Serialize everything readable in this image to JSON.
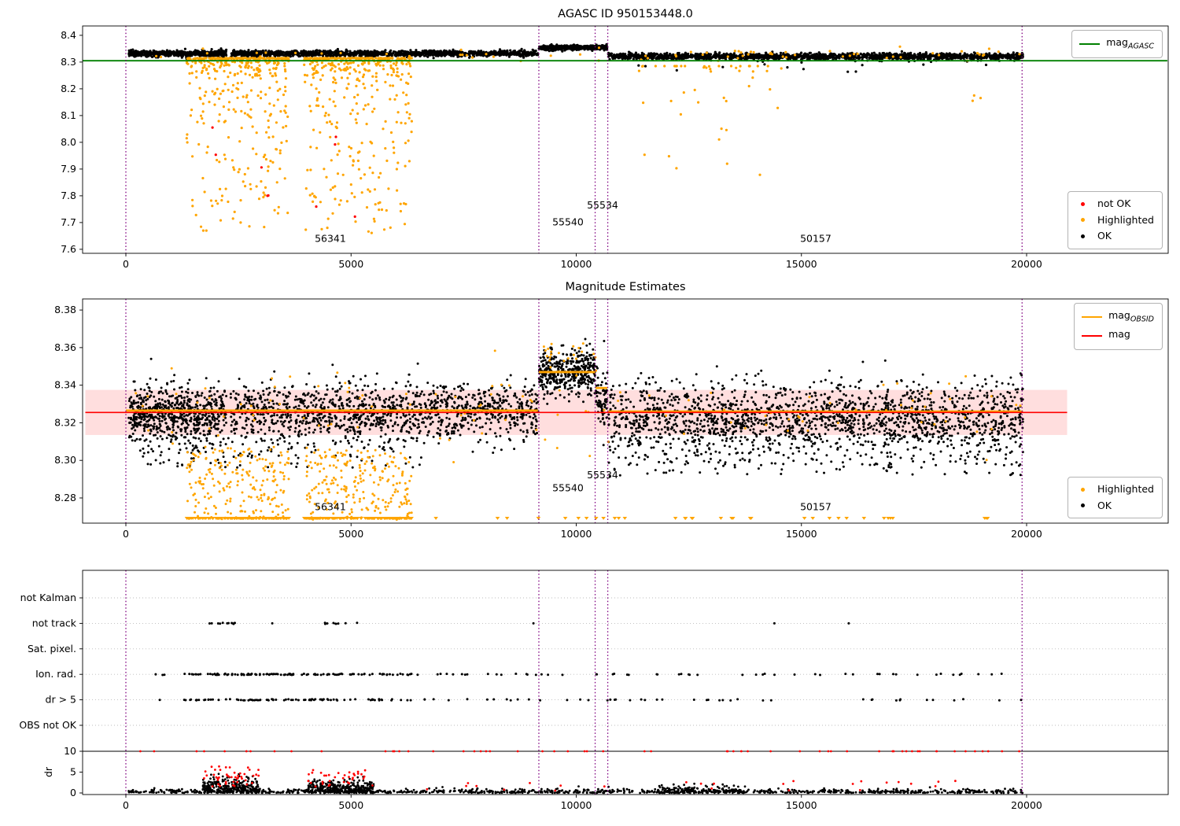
{
  "figure_title": "AGASC ID 950153448.0",
  "colors": {
    "ok": "#000000",
    "highlighted": "#ffa500",
    "not_ok": "#ff0000",
    "mag_agasc": "#008000",
    "mag": "#ff0000",
    "mag_obsid": "#ffa500",
    "vline": "#800080",
    "band": "#ff0000"
  },
  "legends": {
    "agasc": {
      "base": "mag",
      "sub": "AGASC",
      "color": "#008000"
    },
    "top_markers": [
      {
        "label": "not OK",
        "color": "#ff0000"
      },
      {
        "label": "Highlighted",
        "color": "#ffa500"
      },
      {
        "label": "OK",
        "color": "#000000"
      }
    ],
    "mid_lines": [
      {
        "base": "mag",
        "sub": "OBSID",
        "color": "#ffa500"
      },
      {
        "base": "mag",
        "sub": "",
        "color": "#ff0000"
      }
    ],
    "mid_markers": [
      {
        "label": "Highlighted",
        "color": "#ffa500"
      },
      {
        "label": "OK",
        "color": "#000000"
      }
    ]
  },
  "chart_data": [
    {
      "type": "scatter",
      "title": "AGASC ID 950153448.0",
      "xlim": [
        -960,
        23125
      ],
      "ylim": [
        7.585,
        8.435
      ],
      "xticks": [
        0,
        5000,
        10000,
        15000,
        20000
      ],
      "xtick_labels": [
        "0",
        "5000",
        "10000",
        "15000",
        "20000"
      ],
      "yticks": [
        8.4,
        8.3,
        8.2,
        8.1,
        8.0,
        7.9,
        7.8,
        7.7,
        7.6
      ],
      "ytick_labels": [
        "8.4",
        "8.3",
        "8.2",
        "8.1",
        "8.0",
        "7.9",
        "7.8",
        "7.7",
        "7.6"
      ],
      "vlines": [
        0,
        9170,
        10420,
        10700,
        19900
      ],
      "hlines": [
        {
          "name": "mag-agasc-line",
          "y": 8.305,
          "x0": -960,
          "x1": 23125,
          "color_key": "mag_agasc",
          "width": 1.8
        }
      ],
      "annotations": [
        {
          "text": "56341",
          "x": 4541,
          "y": 7.627
        },
        {
          "text": "55540",
          "x": 9816,
          "y": 7.69
        },
        {
          "text": "55534",
          "x": 10585,
          "y": 7.752
        },
        {
          "text": "50157",
          "x": 15318,
          "y": 7.627
        }
      ],
      "clusters": [
        {
          "name": "ok-band-a",
          "color_key": "ok",
          "marker": "dot",
          "r": 1.6,
          "n": 600,
          "x": [
            60,
            2230
          ],
          "y": {
            "type": "gauss",
            "mean": 8.332,
            "sd": 0.0055
          }
        },
        {
          "name": "ok-band-b",
          "color_key": "ok",
          "marker": "dot",
          "r": 1.6,
          "n": 1300,
          "x": [
            2330,
            9150
          ],
          "y": {
            "type": "gauss",
            "mean": 8.332,
            "sd": 0.0055
          }
        },
        {
          "name": "ok-elevated",
          "color_key": "ok",
          "marker": "dot",
          "r": 1.6,
          "n": 430,
          "x": [
            9170,
            10690
          ],
          "y": {
            "type": "gauss",
            "mean": 8.354,
            "sd": 0.0045
          }
        },
        {
          "name": "ok-band-c",
          "color_key": "ok",
          "marker": "dot",
          "r": 1.6,
          "n": 1700,
          "x": [
            10710,
            19920
          ],
          "y": {
            "type": "gauss",
            "mean": 8.321,
            "sd": 0.006
          }
        },
        {
          "name": "ok-low-sparse",
          "color_key": "ok",
          "marker": "dot",
          "r": 1.6,
          "n": 14,
          "x": [
            10720,
            19500
          ],
          "y": {
            "type": "uniform",
            "min": 8.262,
            "max": 8.302
          }
        },
        {
          "name": "hl-dip-a",
          "color_key": "highlighted",
          "marker": "dot",
          "r": 1.6,
          "n": 430,
          "x": [
            1350,
            3620
          ],
          "y": {
            "type": "taildown",
            "top": 8.315,
            "min": 7.65
          }
        },
        {
          "name": "hl-dip-b",
          "color_key": "highlighted",
          "marker": "dot",
          "r": 1.6,
          "n": 460,
          "x": [
            3950,
            6350
          ],
          "y": {
            "type": "taildown",
            "top": 8.315,
            "min": 7.66
          }
        },
        {
          "name": "hl-mid-sparse",
          "color_key": "highlighted",
          "marker": "dot",
          "r": 1.6,
          "n": 48,
          "x": [
            11300,
            14600
          ],
          "y": {
            "type": "taildown",
            "top": 8.285,
            "min": 7.87
          }
        },
        {
          "name": "hl-band-mix",
          "color_key": "highlighted",
          "marker": "dot",
          "r": 1.6,
          "n": 70,
          "x": [
            100,
            19900
          ],
          "y": {
            "type": "gauss",
            "mean": 8.331,
            "sd": 0.011
          }
        },
        {
          "name": "hl-right",
          "color_key": "highlighted",
          "marker": "dot",
          "r": 1.6,
          "n": 3,
          "x": [
            18800,
            19600
          ],
          "y": {
            "type": "uniform",
            "min": 8.07,
            "max": 8.2
          }
        },
        {
          "name": "notok-dip",
          "color_key": "not_ok",
          "marker": "dot",
          "r": 1.6,
          "n": 9,
          "x": [
            1750,
            5900
          ],
          "y": {
            "type": "uniform",
            "min": 7.72,
            "max": 8.07
          }
        }
      ]
    },
    {
      "type": "scatter",
      "title": "Magnitude Estimates",
      "xlim": [
        -960,
        23125
      ],
      "ylim": [
        8.2666,
        8.3859
      ],
      "xticks": [
        0,
        5000,
        10000,
        15000,
        20000
      ],
      "xtick_labels": [
        "0",
        "5000",
        "10000",
        "15000",
        "20000"
      ],
      "yticks": [
        8.38,
        8.36,
        8.34,
        8.32,
        8.3,
        8.28
      ],
      "ytick_labels": [
        "8.38",
        "8.36",
        "8.34",
        "8.32",
        "8.30",
        "8.28"
      ],
      "vlines": [
        0,
        9170,
        10420,
        10700,
        19900
      ],
      "band": {
        "x0": -900,
        "x1": 20900,
        "y0": 8.3135,
        "y1": 8.3375,
        "color_key": "band",
        "opacity": 0.13
      },
      "hlines": [
        {
          "name": "mag-line",
          "y": 8.3255,
          "x0": -900,
          "x1": 20900,
          "color_key": "mag",
          "width": 1.6
        }
      ],
      "segments": [
        {
          "name": "mag-obsid-seg-1",
          "x0": 0,
          "x1": 9150,
          "y": 8.3265,
          "color_key": "mag_obsid",
          "width": 2.8
        },
        {
          "name": "mag-obsid-seg-2",
          "x0": 9170,
          "x1": 10420,
          "y": 8.347,
          "color_key": "mag_obsid",
          "width": 2.8
        },
        {
          "name": "mag-obsid-seg-3",
          "x0": 10430,
          "x1": 10690,
          "y": 8.3385,
          "color_key": "mag_obsid",
          "width": 2.8
        },
        {
          "name": "mag-obsid-seg-4",
          "x0": 10710,
          "x1": 19920,
          "y": 8.326,
          "color_key": "mag_obsid",
          "width": 2.8
        }
      ],
      "annotations": [
        {
          "text": "56341",
          "x": 4541,
          "y": 8.2735
        },
        {
          "text": "55540",
          "x": 9816,
          "y": 8.2835
        },
        {
          "text": "55534",
          "x": 10585,
          "y": 8.2905
        },
        {
          "text": "50157",
          "x": 15318,
          "y": 8.2735
        }
      ],
      "clusters": [
        {
          "name": "ok-cloud-a1",
          "color_key": "ok",
          "marker": "dot",
          "r": 1.5,
          "n": 650,
          "x": [
            60,
            2230
          ],
          "y": {
            "type": "gauss",
            "mean": 8.325,
            "sd": 0.0075
          }
        },
        {
          "name": "ok-cloud-a2",
          "color_key": "ok",
          "marker": "dot",
          "r": 1.5,
          "n": 1250,
          "x": [
            2330,
            9150
          ],
          "y": {
            "type": "gauss",
            "mean": 8.326,
            "sd": 0.0075
          }
        },
        {
          "name": "ok-low-left",
          "color_key": "ok",
          "marker": "dot",
          "r": 1.5,
          "n": 110,
          "x": [
            300,
            6400
          ],
          "y": {
            "type": "uniform",
            "min": 8.296,
            "max": 8.312
          }
        },
        {
          "name": "ok-elevated",
          "color_key": "ok",
          "marker": "dot",
          "r": 1.5,
          "n": 430,
          "x": [
            9170,
            10420
          ],
          "y": {
            "type": "gauss",
            "mean": 8.347,
            "sd": 0.0055
          }
        },
        {
          "name": "ok-short-obsid",
          "color_key": "ok",
          "marker": "dot",
          "r": 1.5,
          "n": 70,
          "x": [
            10430,
            10690
          ],
          "y": {
            "type": "gauss",
            "mean": 8.333,
            "sd": 0.009
          }
        },
        {
          "name": "ok-cloud-b",
          "color_key": "ok",
          "marker": "dot",
          "r": 1.5,
          "n": 1750,
          "x": [
            10710,
            19920
          ],
          "y": {
            "type": "gauss",
            "mean": 8.322,
            "sd": 0.0095
          }
        },
        {
          "name": "ok-low-right",
          "color_key": "ok",
          "marker": "dot",
          "r": 1.5,
          "n": 130,
          "x": [
            10800,
            19900
          ],
          "y": {
            "type": "uniform",
            "min": 8.292,
            "max": 8.306
          }
        },
        {
          "name": "hl-low-a",
          "color_key": "highlighted",
          "marker": "dot",
          "r": 1.5,
          "n": 210,
          "x": [
            1350,
            3620
          ],
          "y": {
            "type": "uniform",
            "min": 8.2685,
            "max": 8.308
          }
        },
        {
          "name": "hl-low-b",
          "color_key": "highlighted",
          "marker": "dot",
          "r": 1.5,
          "n": 230,
          "x": [
            3950,
            6350
          ],
          "y": {
            "type": "uniform",
            "min": 8.2685,
            "max": 8.306
          }
        },
        {
          "name": "hl-mix",
          "color_key": "highlighted",
          "marker": "dot",
          "r": 1.5,
          "n": 120,
          "x": [
            100,
            19900
          ],
          "y": {
            "type": "gauss",
            "mean": 8.327,
            "sd": 0.011
          }
        },
        {
          "name": "hl-elevated",
          "color_key": "highlighted",
          "marker": "dot",
          "r": 1.5,
          "n": 22,
          "x": [
            9200,
            10450
          ],
          "y": {
            "type": "gauss",
            "mean": 8.357,
            "sd": 0.004
          }
        },
        {
          "name": "hl-clip-a",
          "color_key": "highlighted",
          "marker": "tridown",
          "n": 130,
          "x": [
            1350,
            3620
          ],
          "y": {
            "type": "const",
            "value": 8.2692
          }
        },
        {
          "name": "hl-clip-b",
          "color_key": "highlighted",
          "marker": "tridown",
          "n": 140,
          "x": [
            3950,
            6350
          ],
          "y": {
            "type": "const",
            "value": 8.2692
          }
        },
        {
          "name": "hl-clip-sparse",
          "color_key": "highlighted",
          "marker": "tridown",
          "n": 28,
          "x": [
            6500,
            19900
          ],
          "y": {
            "type": "const",
            "value": 8.2692
          }
        },
        {
          "name": "hl-clip-mid",
          "color_key": "highlighted",
          "marker": "tridown",
          "n": 8,
          "x": [
            12000,
            13900
          ],
          "y": {
            "type": "const",
            "value": 8.2692
          }
        }
      ]
    },
    {
      "type": "scatter-categorical",
      "title": "",
      "xlim": [
        -960,
        23125
      ],
      "xticks": [
        0,
        5000,
        10000,
        15000,
        20000
      ],
      "xtick_labels": [
        "0",
        "5000",
        "10000",
        "15000",
        "20000"
      ],
      "categories": [
        "not Kalman",
        "not track",
        "Sat. pixel.",
        "Ion. rad.",
        "dr > 5",
        "OBS not OK"
      ],
      "dr_ticks": [
        10,
        5,
        0
      ],
      "dr_label": "dr",
      "hline_dr": 10,
      "vlines": [
        0,
        9170,
        10420,
        10700,
        19900
      ],
      "cat_clusters": [
        {
          "cat": 1,
          "ranges": [
            [
              1750,
              2450,
              12
            ],
            [
              4300,
              5200,
              9
            ]
          ],
          "xs": [
            3250,
            9050,
            14400,
            16050
          ]
        },
        {
          "cat": 3,
          "ranges": [
            [
              150,
              19900,
              75
            ],
            [
              1400,
              6350,
              95
            ]
          ],
          "xs": []
        },
        {
          "cat": 4,
          "ranges": [
            [
              150,
              19900,
              60
            ],
            [
              1400,
              6350,
              75
            ]
          ],
          "xs": []
        }
      ],
      "dr_clusters": [
        {
          "name": "base",
          "color_key": "ok",
          "n": 950,
          "x": [
            60,
            19920
          ],
          "y": {
            "type": "absgauss",
            "scale": 0.45,
            "max": 2.6
          }
        },
        {
          "name": "bump-a",
          "color_key": "ok",
          "n": 260,
          "x": [
            1700,
            2950
          ],
          "y": {
            "type": "absgauss",
            "scale": 1.7,
            "max": 5.2
          }
        },
        {
          "name": "bump-b",
          "color_key": "ok",
          "n": 320,
          "x": [
            4050,
            5500
          ],
          "y": {
            "type": "absgauss",
            "scale": 1.3,
            "max": 5.0
          }
        },
        {
          "name": "bump-mid",
          "color_key": "ok",
          "n": 120,
          "x": [
            11800,
            13600
          ],
          "y": {
            "type": "absgauss",
            "scale": 0.9,
            "max": 3.2
          }
        },
        {
          "name": "red-clipped",
          "color_key": "not_ok",
          "n": 60,
          "x": [
            150,
            19900
          ],
          "y": {
            "type": "const",
            "value": 10
          }
        },
        {
          "name": "red-a",
          "color_key": "not_ok",
          "n": 45,
          "x": [
            1700,
            2950
          ],
          "y": {
            "type": "uniform",
            "min": 1.5,
            "max": 6.5
          }
        },
        {
          "name": "red-b",
          "color_key": "not_ok",
          "n": 35,
          "x": [
            4050,
            5500
          ],
          "y": {
            "type": "uniform",
            "min": 1.5,
            "max": 5.5
          }
        },
        {
          "name": "red-sparse",
          "color_key": "not_ok",
          "n": 25,
          "x": [
            6500,
            19900
          ],
          "y": {
            "type": "uniform",
            "min": 0.5,
            "max": 3.0
          }
        }
      ]
    }
  ]
}
